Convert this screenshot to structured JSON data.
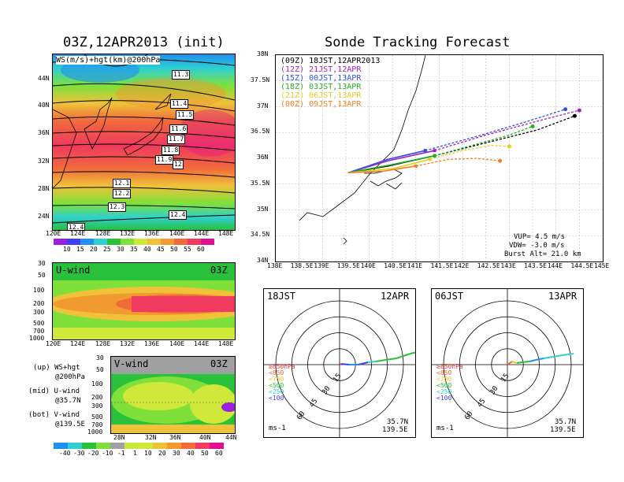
{
  "left_title": "03Z,12APR2013 (init)",
  "right_title": "Sonde Tracking Forecast",
  "ws_panel": {
    "label": "WS(m/s)+hgt(km)@200hPa",
    "lat_ticks": [
      "44N",
      "40N",
      "36N",
      "32N",
      "28N",
      "24N"
    ],
    "lon_ticks": [
      "120E",
      "124E",
      "128E",
      "132E",
      "136E",
      "140E",
      "144E",
      "148E"
    ],
    "contours": [
      "11.3",
      "11.4",
      "11.5",
      "11.6",
      "11.7",
      "11.8",
      "11.9",
      "12",
      "12.1",
      "12.2",
      "12.3",
      "12.4",
      "12.4"
    ],
    "colorbar": [
      "10",
      "15",
      "20",
      "25",
      "30",
      "35",
      "40",
      "45",
      "50",
      "55",
      "60"
    ],
    "colors": [
      "#9b20e0",
      "#3f3ff0",
      "#1f8ff0",
      "#2ed0d0",
      "#29c03a",
      "#7fe03a",
      "#cfe83a",
      "#f0c23a",
      "#f09a30",
      "#f06a3a",
      "#f03a60",
      "#e01090"
    ]
  },
  "u_panel": {
    "label": "U-wind",
    "time": "03Z",
    "p_ticks": [
      "30",
      "50",
      "100",
      "200",
      "300",
      "500",
      "700",
      "1000"
    ],
    "lon_ticks": [
      "120E",
      "124E",
      "128E",
      "132E",
      "136E",
      "140E",
      "144E",
      "148E"
    ]
  },
  "v_panel": {
    "label": "V-wind",
    "time": "03Z",
    "p_ticks": [
      "30",
      "50",
      "100",
      "200",
      "300",
      "500",
      "700",
      "1000"
    ],
    "lat_ticks": [
      "28N",
      "32N",
      "36N",
      "40N",
      "44N"
    ],
    "colorbar": [
      "-40",
      "-30",
      "-20",
      "-10",
      "-1",
      "1",
      "10",
      "20",
      "30",
      "40",
      "50",
      "60"
    ]
  },
  "legend_notes": {
    "up1": "(up) WS+hgt",
    "up2": "@200hPa",
    "mid1": "(mid) U-wind",
    "mid2": "@35.7N",
    "bot1": "(bot) V-wind",
    "bot2": "@139.5E"
  },
  "track_panel": {
    "lat_ticks": [
      "38N",
      "37.5N",
      "37N",
      "36.5N",
      "36N",
      "35.5N",
      "35N",
      "34.5N",
      "34N"
    ],
    "lon_ticks": [
      "138E",
      "138.5E",
      "139E",
      "139.5E",
      "140E",
      "140.5E",
      "141E",
      "141.5E",
      "142E",
      "142.5E",
      "143E",
      "143.5E",
      "144E",
      "144.5E",
      "145E"
    ],
    "legend": [
      {
        "code": "(09Z)",
        "time": "18JST,12APR2013",
        "color": "#000000"
      },
      {
        "code": "(12Z)",
        "time": "21JST,12APR",
        "color": "#a020c0"
      },
      {
        "code": "(15Z)",
        "time": "00JST,13APR",
        "color": "#3050e0"
      },
      {
        "code": "(18Z)",
        "time": "03JST,13APR",
        "color": "#20b020"
      },
      {
        "code": "(21Z)",
        "time": "06JST,13APR",
        "color": "#e0d020"
      },
      {
        "code": "(00Z)",
        "time": "09JST,13APR",
        "color": "#f08020"
      }
    ],
    "params": {
      "vup": "VUP= 4.5 m/s",
      "vdw": "VDW= -3.0 m/s",
      "burst": "Burst Alt= 21.0 km"
    }
  },
  "hodographs": [
    {
      "jst": "18JST",
      "date": "12APR",
      "levels": [
        "≥850hPa",
        "<850",
        "<700",
        "<500",
        "<250",
        "<100"
      ],
      "unit": "ms-1",
      "lat": "35.7N",
      "lon": "139.5E",
      "rings": [
        "15",
        "30",
        "45",
        "60"
      ]
    },
    {
      "jst": "06JST",
      "date": "13APR",
      "levels": [
        "≥850hPa",
        "<850",
        "<700",
        "<500",
        "<250",
        "<100"
      ],
      "unit": "ms-1",
      "lat": "35.7N",
      "lon": "139.5E",
      "rings": [
        "15",
        "30",
        "45",
        "60"
      ]
    }
  ],
  "chart_data": {
    "type": "line",
    "title": "Sonde Tracking Forecast",
    "xlabel": "",
    "ylabel": "",
    "xlim": [
      138,
      145
    ],
    "ylim": [
      34,
      38
    ],
    "series": [
      {
        "name": "(09Z) 18JST,12APR2013",
        "points": [
          [
            139.55,
            35.72
          ],
          [
            140.4,
            35.85
          ],
          [
            141.4,
            36.05
          ],
          [
            142.5,
            36.3
          ],
          [
            143.6,
            36.55
          ],
          [
            144.4,
            36.82
          ]
        ]
      },
      {
        "name": "(12Z) 21JST,12APR",
        "points": [
          [
            139.55,
            35.72
          ],
          [
            140.4,
            35.95
          ],
          [
            141.4,
            36.15
          ],
          [
            142.5,
            36.45
          ],
          [
            143.6,
            36.72
          ],
          [
            144.5,
            36.93
          ]
        ]
      },
      {
        "name": "(15Z) 00JST,13APR",
        "points": [
          [
            139.55,
            35.72
          ],
          [
            140.4,
            35.98
          ],
          [
            141.2,
            36.15
          ],
          [
            142.4,
            36.45
          ],
          [
            143.4,
            36.72
          ],
          [
            144.2,
            36.95
          ]
        ]
      },
      {
        "name": "(18Z) 03JST,13APR",
        "points": [
          [
            139.55,
            35.72
          ],
          [
            140.5,
            35.88
          ],
          [
            141.4,
            36.05
          ],
          [
            142.4,
            36.3
          ],
          [
            143.0,
            36.45
          ],
          [
            143.5,
            36.62
          ]
        ]
      },
      {
        "name": "(21Z) 06JST,13APR",
        "points": [
          [
            139.55,
            35.72
          ],
          [
            140.5,
            35.8
          ],
          [
            141.3,
            35.98
          ],
          [
            142.0,
            36.15
          ],
          [
            142.6,
            36.25
          ],
          [
            143.0,
            36.23
          ]
        ]
      },
      {
        "name": "(00Z) 09JST,13APR",
        "points": [
          [
            139.55,
            35.72
          ],
          [
            140.3,
            35.75
          ],
          [
            141.0,
            35.85
          ],
          [
            141.7,
            35.98
          ],
          [
            142.3,
            36.0
          ],
          [
            142.8,
            35.95
          ]
        ]
      }
    ]
  }
}
